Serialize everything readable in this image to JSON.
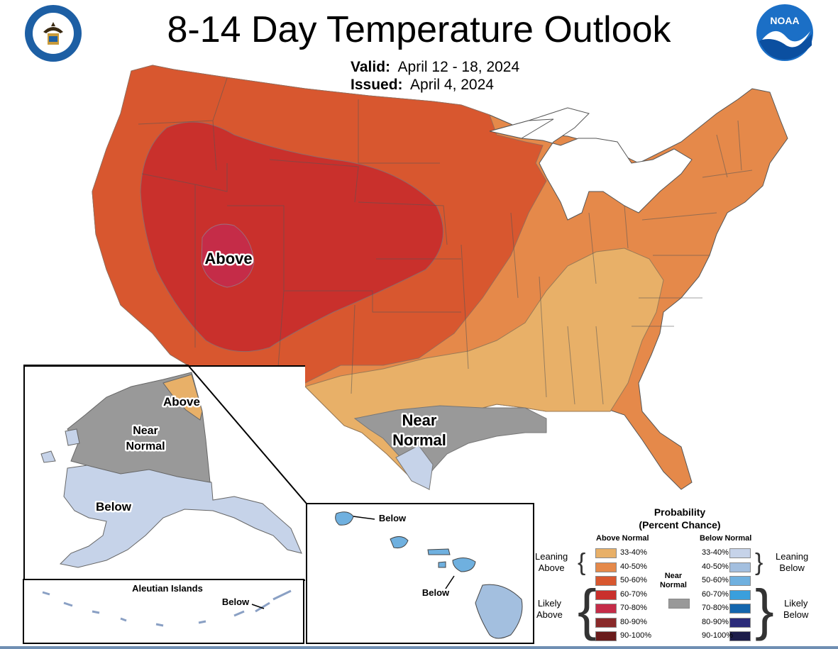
{
  "title": "8-14 Day Temperature Outlook",
  "valid_label": "Valid:",
  "valid_value": "April 12 - 18, 2024",
  "issued_label": "Issued:",
  "issued_value": "April 4, 2024",
  "logos": {
    "left": {
      "name": "department-of-commerce-seal",
      "text": "DEPARTMENT OF COMMERCE · UNITED STATES OF AMERICA"
    },
    "right": {
      "name": "noaa-logo",
      "text": "NOAA"
    }
  },
  "map_labels": {
    "conus_above": "Above",
    "conus_near_normal_1": "Near",
    "conus_near_normal_2": "Normal",
    "alaska_above": "Above",
    "alaska_near_1": "Near",
    "alaska_near_2": "Normal",
    "alaska_below": "Below",
    "aleutian_title": "Aleutian Islands",
    "aleutian_below": "Below",
    "hawaii_below_1": "Below",
    "hawaii_below_2": "Below"
  },
  "legend": {
    "title_1": "Probability",
    "title_2": "(Percent Chance)",
    "above_header": "Above Normal",
    "below_header": "Below Normal",
    "near_header_1": "Near",
    "near_header_2": "Normal",
    "leaning_above_1": "Leaning",
    "leaning_above_2": "Above",
    "likely_above_1": "Likely",
    "likely_above_2": "Above",
    "leaning_below_1": "Leaning",
    "leaning_below_2": "Below",
    "likely_below_1": "Likely",
    "likely_below_2": "Below",
    "above_bins": [
      {
        "label": "33-40%",
        "color": "#e8b068"
      },
      {
        "label": "40-50%",
        "color": "#e5894a"
      },
      {
        "label": "50-60%",
        "color": "#d8572f"
      },
      {
        "label": "60-70%",
        "color": "#c9302c"
      },
      {
        "label": "70-80%",
        "color": "#c52c48"
      },
      {
        "label": "80-90%",
        "color": "#8a2a2a"
      },
      {
        "label": "90-100%",
        "color": "#6a1c1c"
      }
    ],
    "below_bins": [
      {
        "label": "33-40%",
        "color": "#c6d3e9"
      },
      {
        "label": "40-50%",
        "color": "#a3bfdf"
      },
      {
        "label": "50-60%",
        "color": "#6fb0df"
      },
      {
        "label": "60-70%",
        "color": "#3a9fdd"
      },
      {
        "label": "70-80%",
        "color": "#1466ad"
      },
      {
        "label": "80-90%",
        "color": "#2b2b7a"
      },
      {
        "label": "90-100%",
        "color": "#1c1c4a"
      }
    ],
    "near_color": "#999999"
  }
}
